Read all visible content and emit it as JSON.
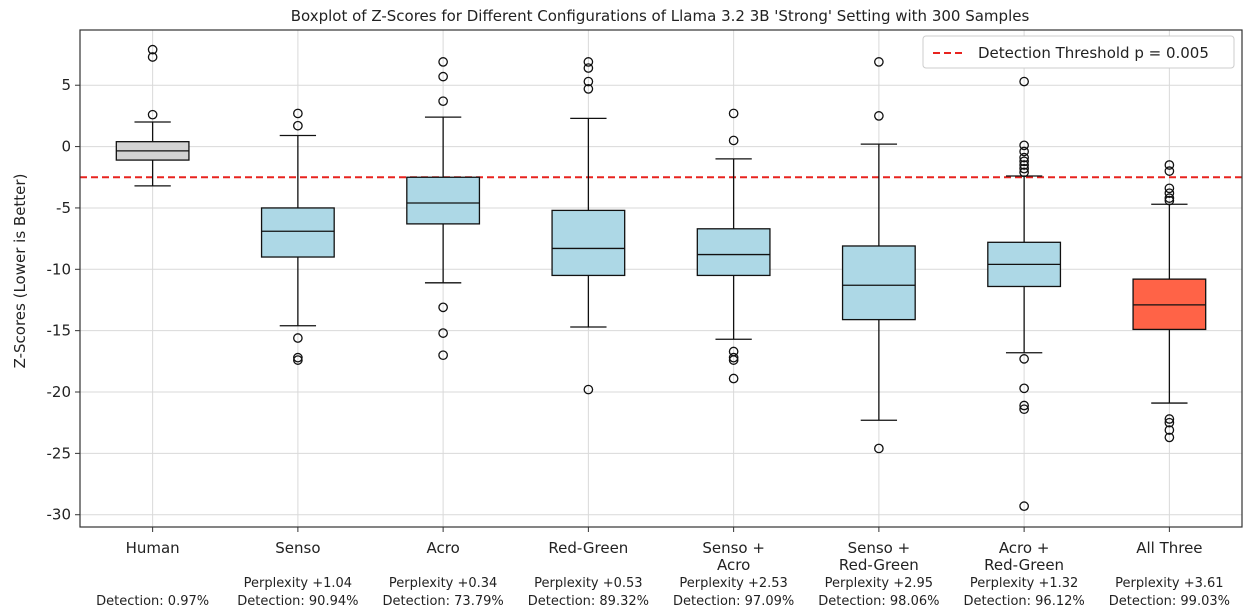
{
  "chart_data": {
    "type": "box",
    "title": "Boxplot of Z-Scores for Different Configurations of Llama 3.2 3B 'Strong' Setting with 300 Samples",
    "ylabel": "Z-Scores (Lower is Better)",
    "xlabel": "",
    "ylim": [
      -31,
      9.5
    ],
    "yticks": [
      5,
      0,
      -5,
      -10,
      -15,
      -20,
      -25,
      -30
    ],
    "grid": true,
    "legend": {
      "position": "top-right",
      "entries": [
        {
          "label": "Detection Threshold p = 0.005",
          "color": "#e8231f",
          "style": "dashed"
        }
      ]
    },
    "threshold": -2.5,
    "categories": [
      {
        "label_lines": [
          "Human"
        ],
        "annotation_lines": [
          "Detection: 0.97%"
        ],
        "color": "#d3d3d3",
        "whisker_low": -3.2,
        "q1": -1.1,
        "median": -0.35,
        "q3": 0.4,
        "whisker_high": 2.0,
        "outliers": [
          7.9,
          7.3,
          2.6
        ]
      },
      {
        "label_lines": [
          "Senso"
        ],
        "annotation_lines": [
          "Perplexity +1.04",
          "Detection: 90.94%"
        ],
        "color": "#add8e6",
        "whisker_low": -14.6,
        "q1": -9.0,
        "median": -6.9,
        "q3": -5.0,
        "whisker_high": 0.9,
        "outliers": [
          2.7,
          1.7,
          -15.6,
          -17.2,
          -17.4
        ]
      },
      {
        "label_lines": [
          "Acro"
        ],
        "annotation_lines": [
          "Perplexity +0.34",
          "Detection: 73.79%"
        ],
        "color": "#add8e6",
        "whisker_low": -11.1,
        "q1": -6.3,
        "median": -4.6,
        "q3": -2.5,
        "whisker_high": 2.4,
        "outliers": [
          6.9,
          5.7,
          3.7,
          -13.1,
          -15.2,
          -17.0
        ]
      },
      {
        "label_lines": [
          "Red-Green"
        ],
        "annotation_lines": [
          "Perplexity +0.53",
          "Detection: 89.32%"
        ],
        "color": "#add8e6",
        "whisker_low": -14.7,
        "q1": -10.5,
        "median": -8.3,
        "q3": -5.2,
        "whisker_high": 2.3,
        "outliers": [
          6.9,
          6.4,
          5.3,
          4.7,
          -19.8
        ]
      },
      {
        "label_lines": [
          "Senso +",
          "Acro"
        ],
        "annotation_lines": [
          "Perplexity +2.53",
          "Detection: 97.09%"
        ],
        "color": "#add8e6",
        "whisker_low": -15.7,
        "q1": -10.5,
        "median": -8.8,
        "q3": -6.7,
        "whisker_high": -1.0,
        "outliers": [
          2.7,
          0.5,
          -16.7,
          -17.2,
          -17.4,
          -18.9
        ]
      },
      {
        "label_lines": [
          "Senso +",
          "Red-Green"
        ],
        "annotation_lines": [
          "Perplexity +2.95",
          "Detection: 98.06%"
        ],
        "color": "#add8e6",
        "whisker_low": -22.3,
        "q1": -14.1,
        "median": -11.3,
        "q3": -8.1,
        "whisker_high": 0.2,
        "outliers": [
          6.9,
          2.5,
          -24.6
        ]
      },
      {
        "label_lines": [
          "Acro +",
          "Red-Green"
        ],
        "annotation_lines": [
          "Perplexity +1.32",
          "Detection: 96.12%"
        ],
        "color": "#add8e6",
        "whisker_low": -16.8,
        "q1": -11.4,
        "median": -9.6,
        "q3": -7.8,
        "whisker_high": -2.4,
        "outliers": [
          5.3,
          0.1,
          -0.4,
          -0.9,
          -1.2,
          -1.5,
          -1.8,
          -2.1,
          -17.3,
          -19.7,
          -21.1,
          -21.4,
          -29.3
        ]
      },
      {
        "label_lines": [
          "All Three"
        ],
        "annotation_lines": [
          "Perplexity +3.61",
          "Detection: 99.03%"
        ],
        "color": "#ff6347",
        "whisker_low": -20.9,
        "q1": -14.9,
        "median": -12.9,
        "q3": -10.8,
        "whisker_high": -4.7,
        "outliers": [
          -1.5,
          -2.0,
          -3.4,
          -3.8,
          -4.2,
          -4.4,
          -22.2,
          -22.5,
          -23.1,
          -23.7
        ]
      }
    ]
  }
}
